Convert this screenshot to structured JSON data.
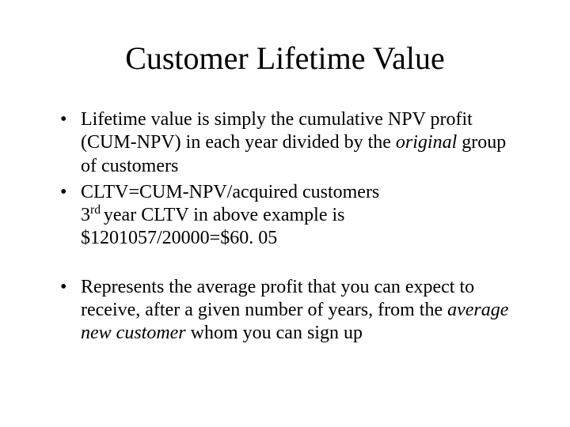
{
  "slide": {
    "title": "Customer Lifetime Value",
    "title_fontsize": 40,
    "body_fontsize": 24,
    "background_color": "#ffffff",
    "text_color": "#000000",
    "bullets": [
      {
        "pre1": "Lifetime value is simply the cumulative NPV profit (CUM-NPV) in each year divided by the ",
        "italic1": "original",
        "post1": " group of customers"
      },
      {
        "line1": "CLTV=CUM-NPV/acquired customers",
        "line2_pre": "3",
        "line2_sup": "rd ",
        "line2_post": "year CLTV in above example is",
        "line3": "$1201057/20000=$60. 05"
      },
      {
        "pre1": "Represents the average profit that you can expect to receive, after a given number of years, from the ",
        "italic1": "average new customer",
        "post1": " whom you can sign up"
      }
    ]
  }
}
